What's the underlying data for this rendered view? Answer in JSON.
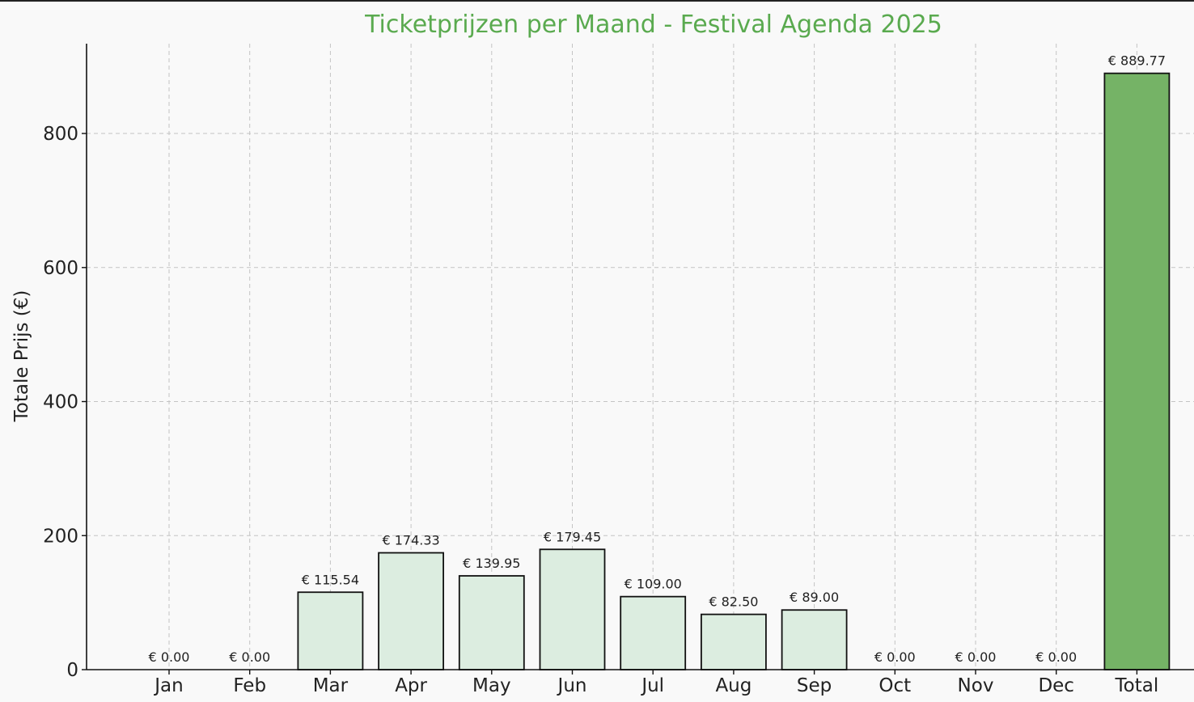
{
  "chart_data": {
    "type": "bar",
    "title": "Ticketprijzen per Maand - Festival Agenda 2025",
    "xlabel": "",
    "ylabel": "Totale Prijs (€)",
    "categories": [
      "Jan",
      "Feb",
      "Mar",
      "Apr",
      "May",
      "Jun",
      "Jul",
      "Aug",
      "Sep",
      "Oct",
      "Nov",
      "Dec",
      "Total"
    ],
    "values": [
      0.0,
      0.0,
      115.54,
      174.33,
      139.95,
      179.45,
      109.0,
      82.5,
      89.0,
      0.0,
      0.0,
      0.0,
      889.77
    ],
    "data_labels": [
      "€ 0.00",
      "€ 0.00",
      "€ 115.54",
      "€ 174.33",
      "€ 139.95",
      "€ 179.45",
      "€ 109.00",
      "€ 82.50",
      "€ 89.00",
      "€ 0.00",
      "€ 0.00",
      "€ 0.00",
      "€ 889.77"
    ],
    "yticks": [
      0,
      200,
      400,
      600,
      800
    ],
    "ylim": [
      0,
      934
    ],
    "grid": true,
    "colors": {
      "title": "#5aaa4f",
      "bar_month": "#dcede0",
      "bar_total": "#75b366",
      "bar_edge": "#111111",
      "grid": "#c4c4c4",
      "background": "#f9f9f9"
    }
  }
}
